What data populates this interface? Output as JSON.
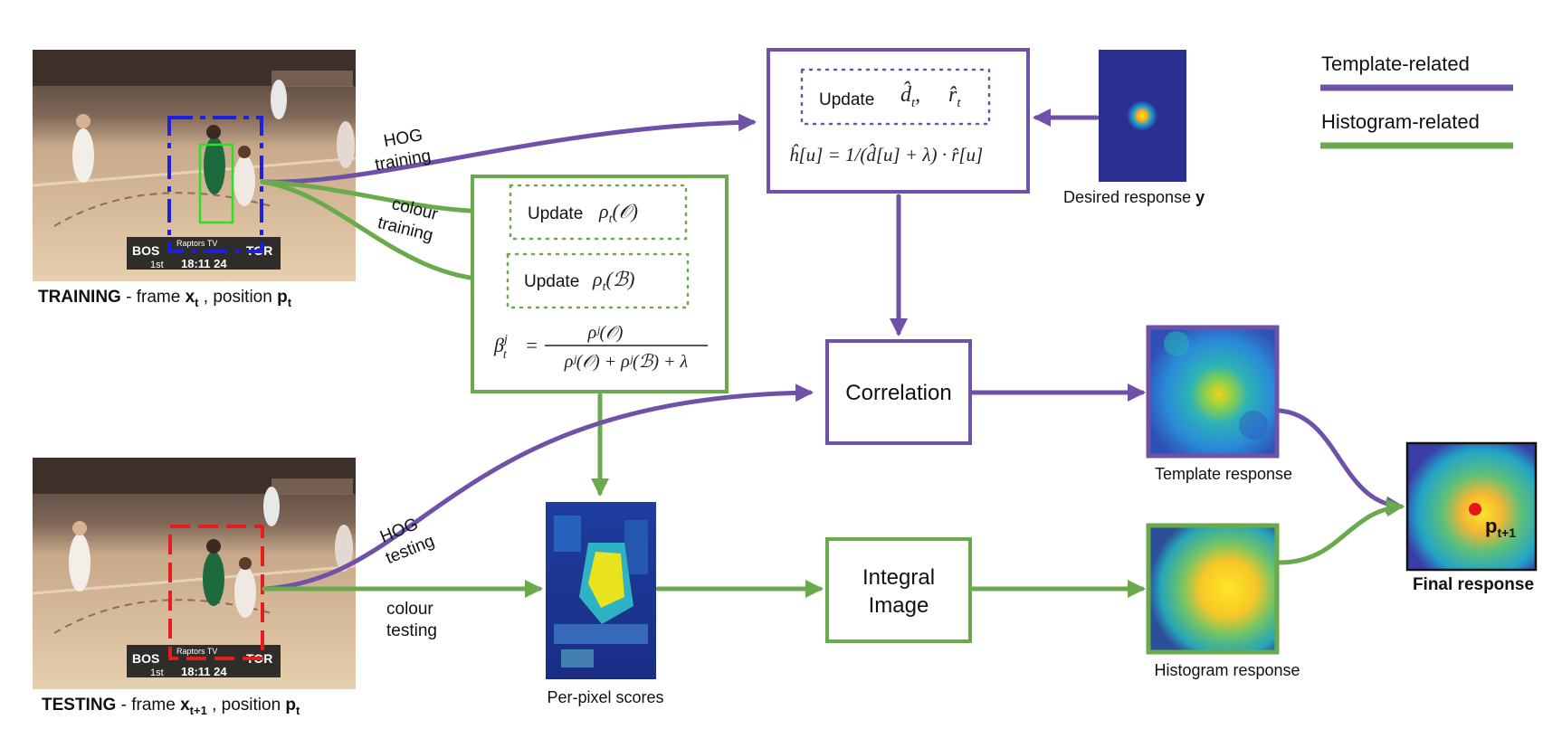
{
  "legend": {
    "template": "Template-related",
    "histogram": "Histogram-related",
    "template_color": "#6f52a8",
    "histogram_color": "#6aaa4c"
  },
  "training": {
    "caption_bold": "TRAINING",
    "caption_rest": " - frame ",
    "caption_x": "x",
    "caption_x_sub": "t",
    "caption_pos": " , position ",
    "caption_p": "p",
    "caption_p_sub": "t",
    "score_left": "BOS",
    "score_right": "TOR",
    "score_brand": "Raptors TV",
    "score_period": "1st",
    "score_clock": "18:11  24"
  },
  "testing": {
    "caption_bold": "TESTING",
    "caption_rest": " - frame ",
    "caption_x": "x",
    "caption_x_sub": "t+1",
    "caption_pos": " , position ",
    "caption_p": "p",
    "caption_p_sub": "t",
    "score_left": "BOS",
    "score_right": "TOR",
    "score_brand": "Raptors TV",
    "score_period": "1st",
    "score_clock": "18:11  24"
  },
  "arrows": {
    "hog_training_1": "HOG",
    "hog_training_2": "training",
    "colour_training_1": "colour",
    "colour_training_2": "training",
    "hog_testing_1": "HOG",
    "hog_testing_2": "testing",
    "colour_testing_1": "colour",
    "colour_testing_2": "testing"
  },
  "template_box": {
    "update_label": "Update",
    "d_hat": "d̂",
    "d_sub": "t",
    "comma": ",",
    "r_hat": "r̂",
    "r_sub": "t",
    "formula": "ĥ[u] = 1/(d̂[u] + λ) · r̂[u]"
  },
  "histogram_box": {
    "update_o_label": "Update",
    "rho_o": "ρ",
    "rho_o_sub": "t",
    "rho_o_arg": "(𝒪)",
    "update_b_label": "Update",
    "rho_b": "ρ",
    "rho_b_sub": "t",
    "rho_b_arg": "(ℬ)",
    "beta": "β",
    "beta_sup": "j",
    "beta_sub": "t",
    "equals": "=",
    "numerator": "ρʲ(𝒪)",
    "denominator": "ρʲ(𝒪) + ρʲ(ℬ) + λ"
  },
  "desired": {
    "caption": "Desired response ",
    "caption_bold": "y"
  },
  "correlation": {
    "label": "Correlation"
  },
  "integral": {
    "line1": "Integral",
    "line2": "Image"
  },
  "per_pixel": {
    "caption": "Per-pixel scores"
  },
  "template_response": {
    "caption": "Template response"
  },
  "histogram_response": {
    "caption": "Histogram response"
  },
  "final_response": {
    "caption": "Final response",
    "point_p": "p",
    "point_sub": "t+1",
    "point_color": "#e8141c"
  }
}
